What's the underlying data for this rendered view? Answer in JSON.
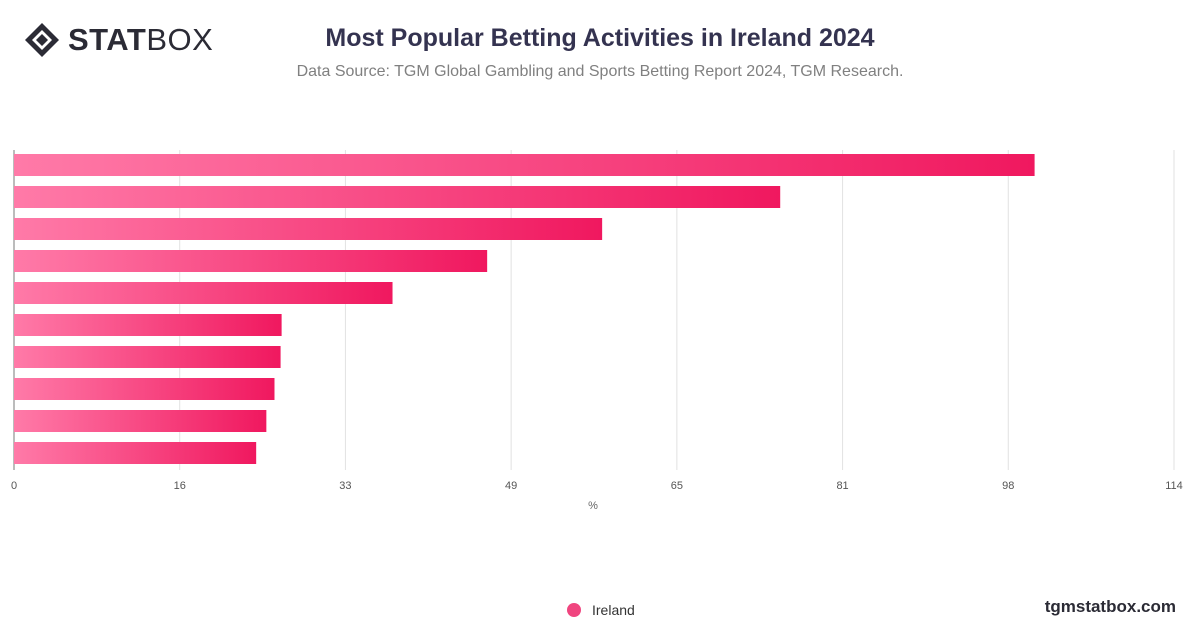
{
  "brand": {
    "logo_bold": "STAT",
    "logo_light": "BOX",
    "website": "tgmstatbox.com"
  },
  "chart_data": {
    "type": "bar",
    "orientation": "horizontal",
    "title": "Most Popular Betting Activities in Ireland 2024",
    "subtitle": "Data Source: TGM Global Gambling and Sports Betting Report 2024, TGM Research.",
    "xlabel": "%",
    "ylabel": "",
    "xlim": [
      0,
      114
    ],
    "x_ticks": [
      "0",
      "16",
      "33",
      "49",
      "65",
      "81",
      "98",
      "114"
    ],
    "category_labels_visible": false,
    "series": [
      {
        "name": "Ireland",
        "values": [
          100.3,
          75.3,
          57.8,
          46.5,
          37.2,
          26.3,
          26.2,
          25.6,
          24.8,
          23.8
        ]
      }
    ],
    "grid": true,
    "legend_position": "bottom-center",
    "colors": {
      "bar_start": "#ff7aa8",
      "bar_end": "#f0185f",
      "grid": "#e2e2e2",
      "axis": "#7a7a7a"
    }
  }
}
